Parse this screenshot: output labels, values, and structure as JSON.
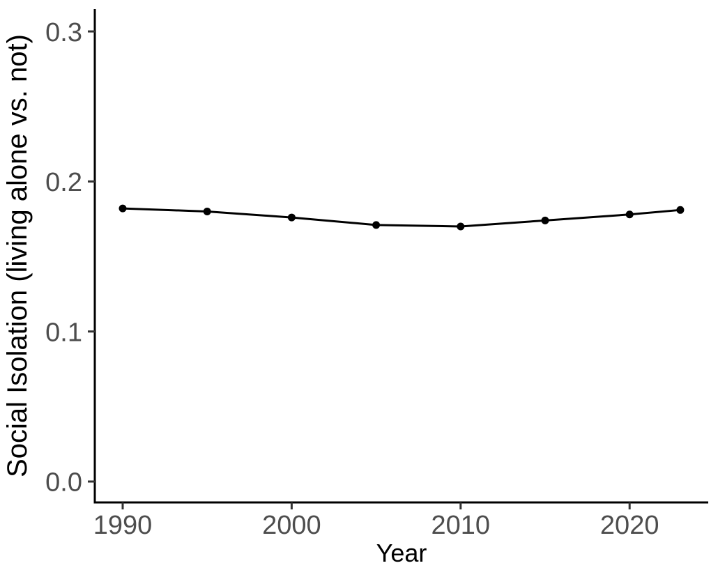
{
  "chart_data": {
    "type": "line",
    "title": "",
    "xlabel": "Year",
    "ylabel": "Social Isolation (living alone vs. not)",
    "x": [
      1990,
      1995,
      2000,
      2005,
      2010,
      2015,
      2020,
      2023
    ],
    "values": [
      0.182,
      0.18,
      0.176,
      0.171,
      0.17,
      0.174,
      0.178,
      0.181
    ],
    "xtick_labels": [
      "1990",
      "2000",
      "2010",
      "2020"
    ],
    "xtick_years": [
      1990,
      2000,
      2010,
      2020
    ],
    "ytick_labels": [
      "0.0",
      "0.1",
      "0.2",
      "0.3"
    ],
    "ytick_values": [
      0.0,
      0.1,
      0.2,
      0.3
    ],
    "xlim": [
      1988.3,
      2024.7
    ],
    "ylim": [
      -0.014,
      0.315
    ],
    "grid": false,
    "legend": "none",
    "marker": "filled-circle",
    "colors": {
      "line": "#000000",
      "point": "#000000",
      "axis": "#000000",
      "tick": "#333333",
      "tick_label": "#4d4d4d",
      "axis_title": "#000000",
      "background": "#ffffff"
    }
  }
}
